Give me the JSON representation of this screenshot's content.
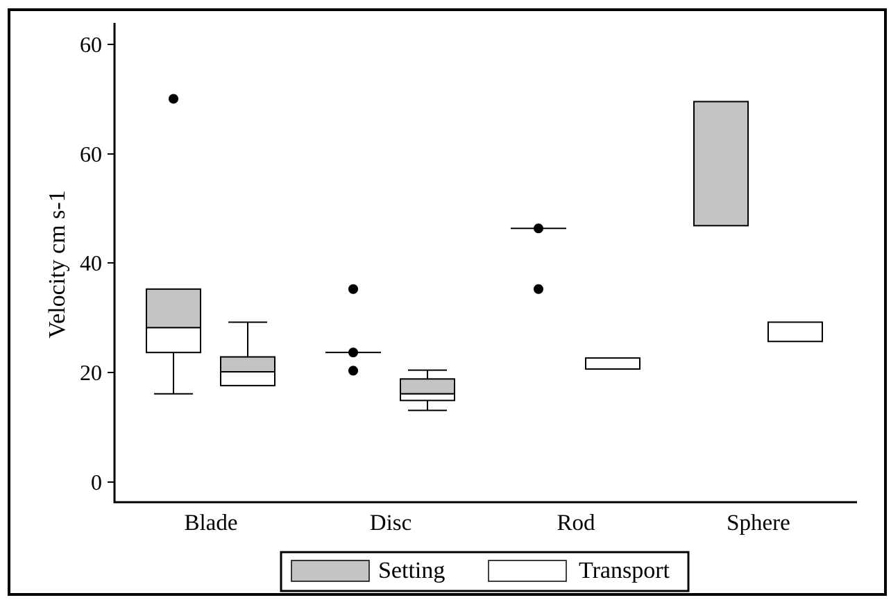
{
  "chart_data": {
    "type": "box",
    "ylabel": "Velocity cm s-1",
    "ytick_labels": [
      "0",
      "20",
      "40",
      "60",
      "60"
    ],
    "categories": [
      "Blade",
      "Disc",
      "Rod",
      "Sphere"
    ],
    "series": [
      {
        "name": "Setting",
        "color": "#c4c4c4",
        "boxes": [
          {
            "category": "Blade",
            "whisker_low": 16,
            "q1": 23.5,
            "median": 28,
            "q3": 35,
            "whisker_high": null,
            "outliers": [
              69.5
            ]
          },
          {
            "category": "Disc",
            "whisker_low": null,
            "q1": 23.5,
            "median": 23.5,
            "q3": 23.5,
            "whisker_high": null,
            "outliers": [
              35,
              23.5,
              20.2
            ]
          },
          {
            "category": "Rod",
            "whisker_low": null,
            "q1": 46,
            "median": 46,
            "q3": 46,
            "whisker_high": null,
            "outliers": [
              46,
              35
            ]
          },
          {
            "category": "Sphere",
            "whisker_low": null,
            "q1": 46.5,
            "median": null,
            "q3": 69,
            "whisker_high": null,
            "outliers": []
          }
        ]
      },
      {
        "name": "Transport",
        "color": "#ffffff",
        "boxes": [
          {
            "category": "Blade",
            "whisker_low": null,
            "q1": 17.5,
            "median": 20,
            "q3": 22.7,
            "whisker_high": 29,
            "outliers": []
          },
          {
            "category": "Disc",
            "whisker_low": 13,
            "q1": 14.8,
            "median": 16,
            "q3": 18.7,
            "whisker_high": 20.3,
            "outliers": []
          },
          {
            "category": "Rod",
            "whisker_low": null,
            "q1": 20.5,
            "median": null,
            "q3": 22.5,
            "whisker_high": null,
            "outliers": []
          },
          {
            "category": "Sphere",
            "whisker_low": null,
            "q1": 25.5,
            "median": null,
            "q3": 29,
            "whisker_high": null,
            "outliers": []
          }
        ]
      }
    ],
    "legend": {
      "placement": "bottom-center",
      "entries": [
        "Setting",
        "Transport"
      ]
    }
  }
}
